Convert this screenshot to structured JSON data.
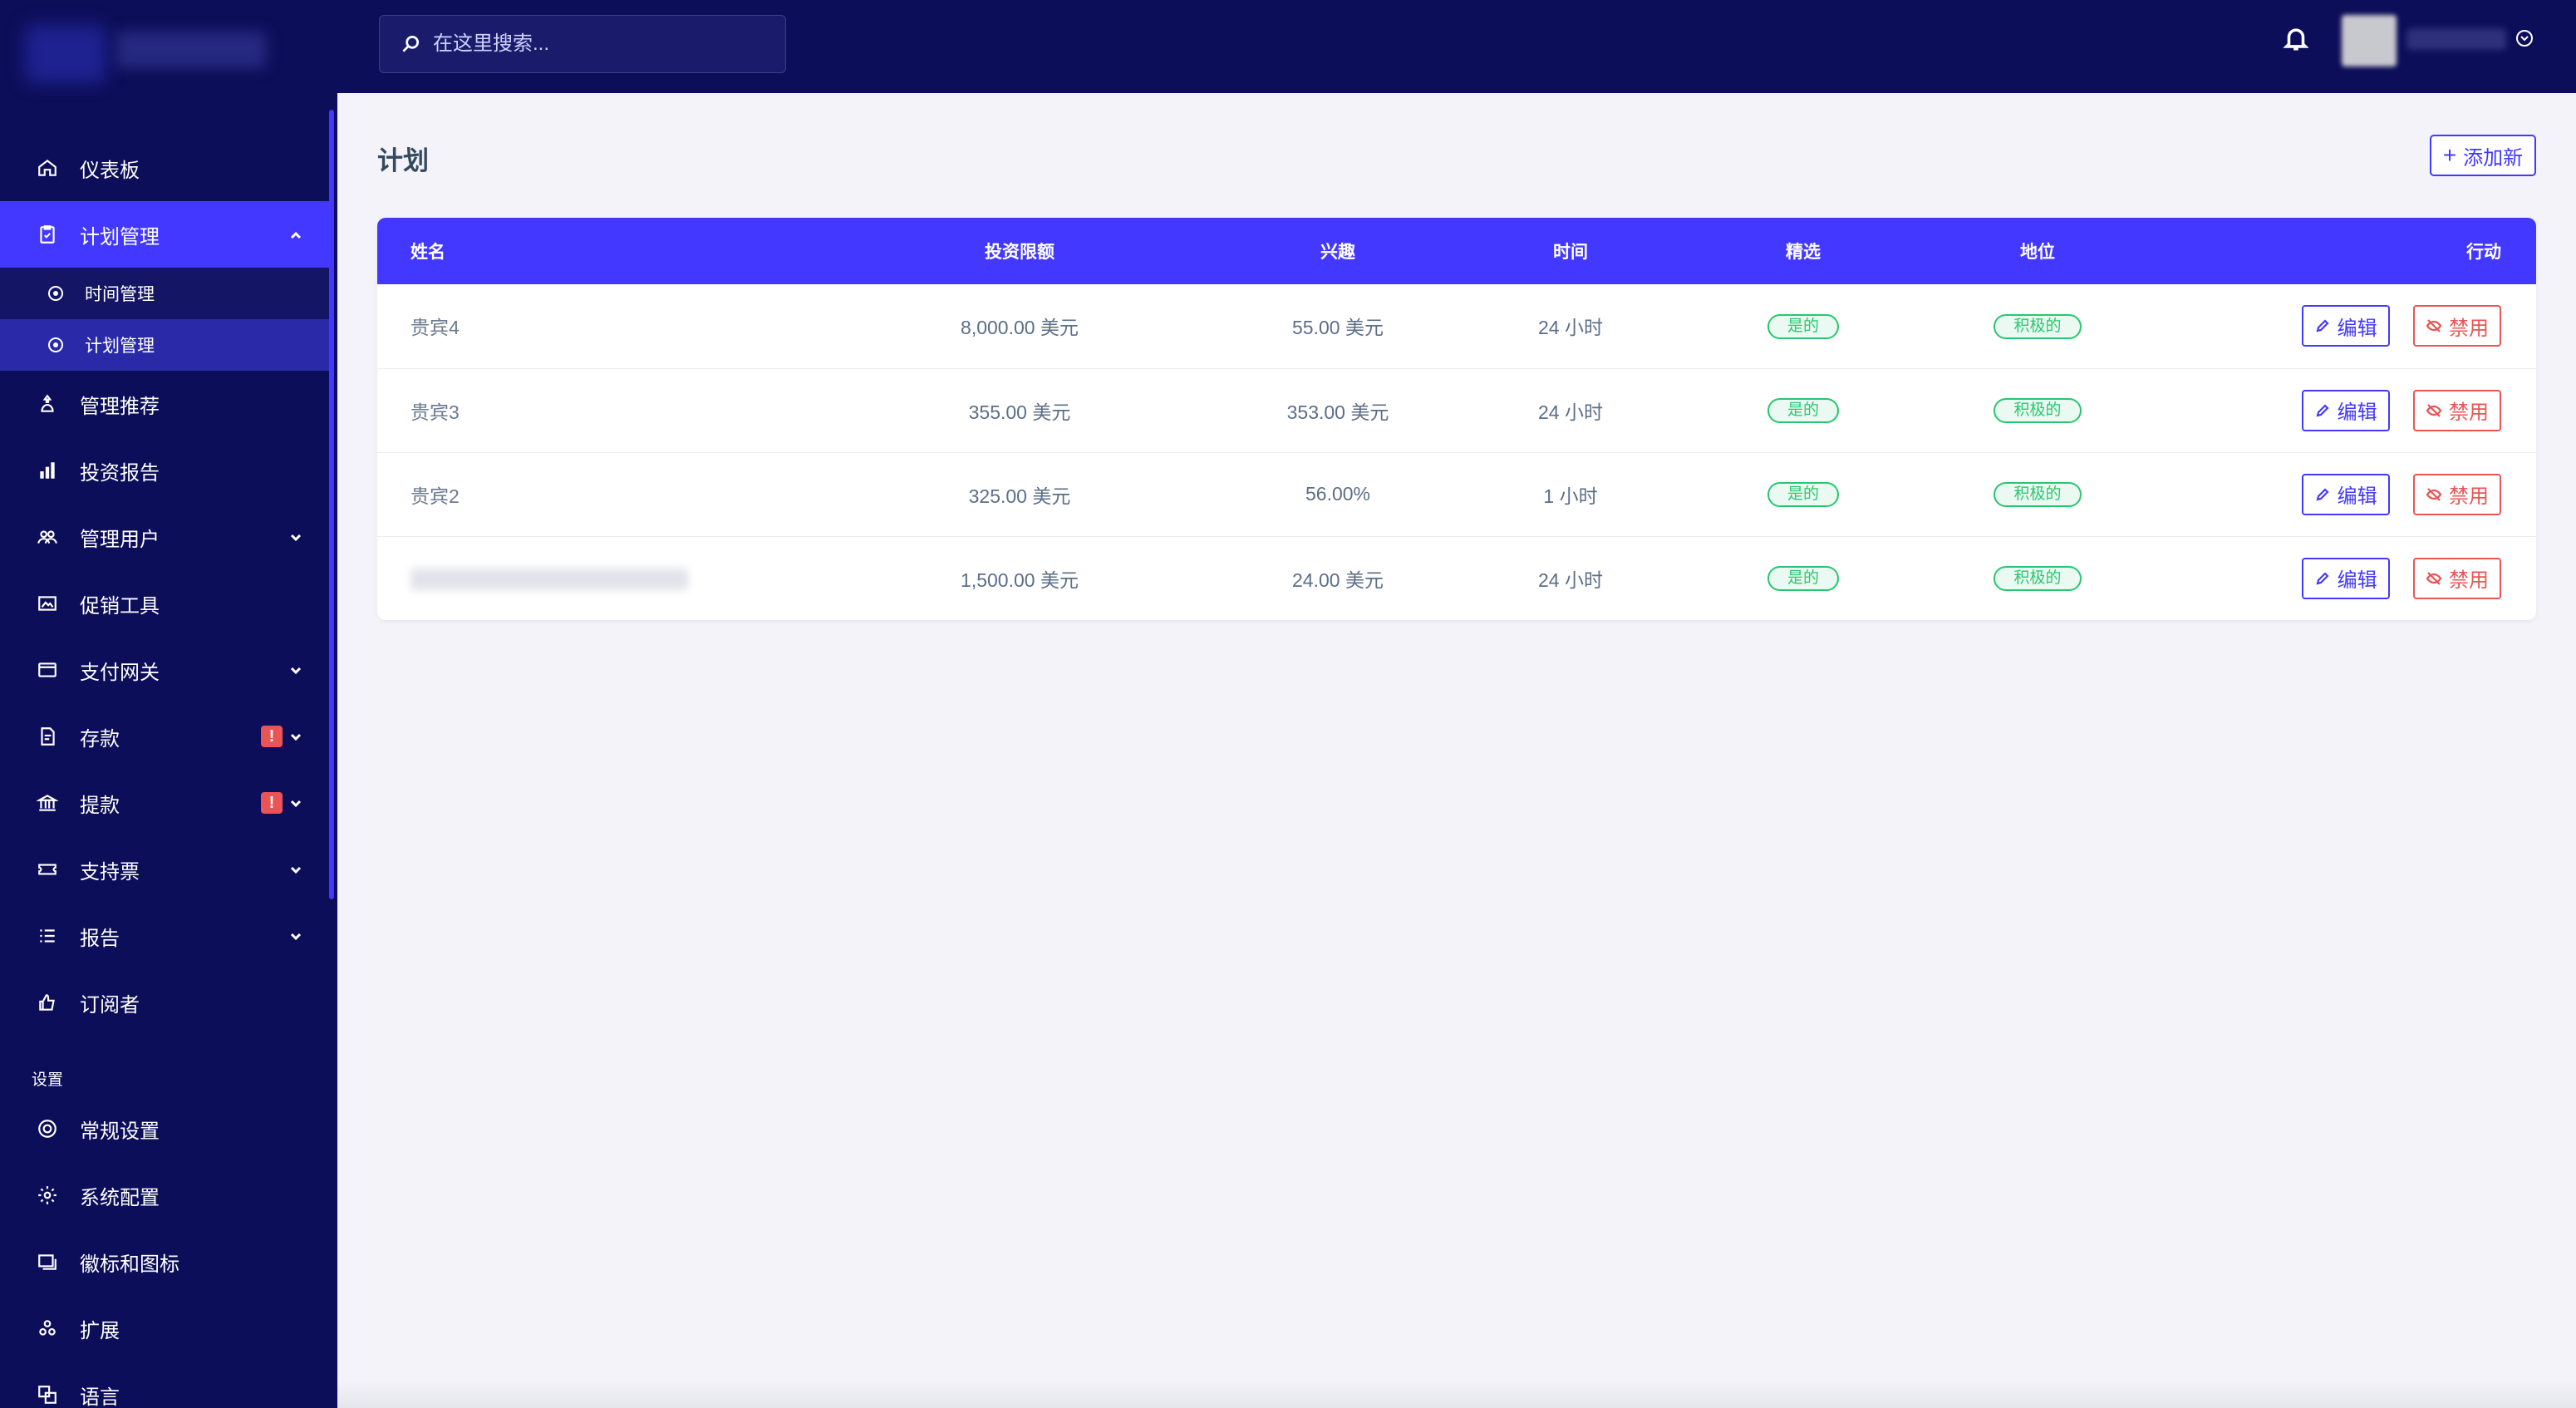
{
  "search": {
    "placeholder": "在这里搜索..."
  },
  "sidebar": {
    "items": [
      {
        "label": "仪表板",
        "icon": "home-icon"
      },
      {
        "label": "计划管理",
        "icon": "clipboard-check-icon",
        "active": true,
        "expanded": true,
        "children": [
          {
            "label": "时间管理"
          },
          {
            "label": "计划管理",
            "active": true
          }
        ]
      },
      {
        "label": "管理推荐",
        "icon": "referral-icon"
      },
      {
        "label": "投资报告",
        "icon": "bar-chart-icon"
      },
      {
        "label": "管理用户",
        "icon": "users-icon",
        "has_children": true
      },
      {
        "label": "促销工具",
        "icon": "image-icon"
      },
      {
        "label": "支付网关",
        "icon": "credit-card-icon",
        "has_children": true
      },
      {
        "label": "存款",
        "icon": "deposit-icon",
        "has_children": true,
        "alert": "!"
      },
      {
        "label": "提款",
        "icon": "bank-icon",
        "has_children": true,
        "alert": "!"
      },
      {
        "label": "支持票",
        "icon": "ticket-icon",
        "has_children": true
      },
      {
        "label": "报告",
        "icon": "list-icon",
        "has_children": true
      },
      {
        "label": "订阅者",
        "icon": "thumbs-up-icon"
      }
    ],
    "settings_title": "设置",
    "settings_items": [
      {
        "label": "常规设置",
        "icon": "life-ring-icon"
      },
      {
        "label": "系统配置",
        "icon": "gear-icon"
      },
      {
        "label": "徽标和图标",
        "icon": "images-icon"
      },
      {
        "label": "扩展",
        "icon": "puzzle-icon"
      },
      {
        "label": "语言",
        "icon": "language-icon"
      }
    ]
  },
  "main": {
    "title": "计划",
    "add_button": {
      "plus": "+",
      "label": "添加新"
    },
    "table": {
      "columns": [
        "姓名",
        "投资限额",
        "兴趣",
        "时间",
        "精选",
        "地位",
        "行动"
      ],
      "rows": [
        {
          "name": "贵宾4",
          "limit": "8,000.00 美元",
          "interest": "55.00 美元",
          "time": "24 小时",
          "featured": "是的",
          "status": "积极的"
        },
        {
          "name": "贵宾3",
          "limit": "355.00 美元",
          "interest": "353.00 美元",
          "time": "24 小时",
          "featured": "是的",
          "status": "积极的"
        },
        {
          "name": "贵宾2",
          "limit": "325.00 美元",
          "interest": "56.00%",
          "time": "1 小时",
          "featured": "是的",
          "status": "积极的"
        },
        {
          "name": "",
          "limit": "1,500.00 美元",
          "interest": "24.00 美元",
          "time": "24 小时",
          "featured": "是的",
          "status": "积极的"
        }
      ],
      "edit_label": "编辑",
      "disable_label": "禁用"
    }
  },
  "colors": {
    "sidebar_bg": "#0d0e59",
    "accent": "#4338ff",
    "success": "#28c76f",
    "danger": "#ea5455"
  }
}
